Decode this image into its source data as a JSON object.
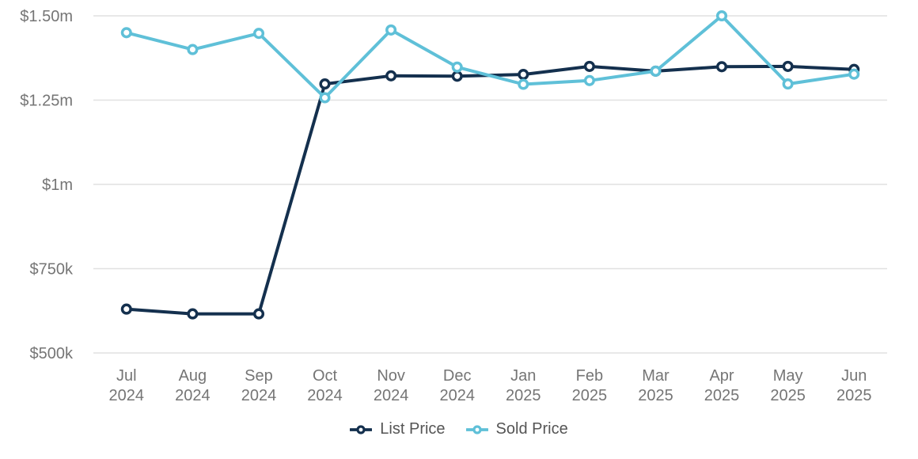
{
  "chart_data": {
    "type": "line",
    "title": "",
    "xlabel": "",
    "ylabel": "",
    "categories_month": [
      "Jul",
      "Aug",
      "Sep",
      "Oct",
      "Nov",
      "Dec",
      "Jan",
      "Feb",
      "Mar",
      "Apr",
      "May",
      "Jun"
    ],
    "categories_year": [
      "2024",
      "2024",
      "2024",
      "2024",
      "2024",
      "2024",
      "2025",
      "2025",
      "2025",
      "2025",
      "2025",
      "2025"
    ],
    "y_axis": {
      "tick_labels": [
        "$1.50m",
        "$1.25m",
        "$1m",
        "$750k",
        "$500k"
      ],
      "tick_values_k": [
        1500,
        1250,
        1000,
        750,
        500
      ],
      "ylim_k": [
        500,
        1500
      ]
    },
    "series": [
      {
        "name": "List Price",
        "color": "#14304e",
        "values_k": [
          630,
          616,
          616,
          1298,
          1322,
          1321,
          1326,
          1350,
          1336,
          1349,
          1350,
          1341
        ]
      },
      {
        "name": "Sold Price",
        "color": "#5fc0d8",
        "values_k": [
          1450,
          1400,
          1448,
          1257,
          1458,
          1348,
          1297,
          1308,
          1336,
          1500,
          1298,
          1327
        ]
      }
    ],
    "grid": true,
    "legend_position": "bottom-center"
  },
  "colors": {
    "background": "#ffffff",
    "gridline": "#e1e1e1",
    "axis_label": "#757575",
    "legend_label": "#555555",
    "marker_fill": "#ffffff"
  }
}
